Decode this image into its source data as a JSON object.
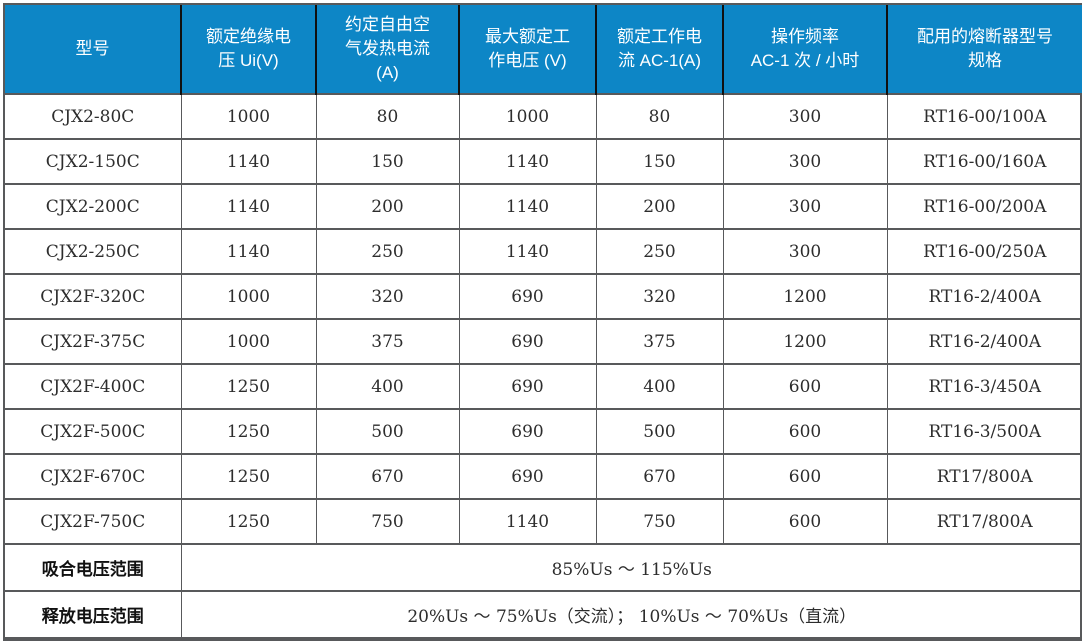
{
  "colors": {
    "header_bg": "#0d86c6",
    "header_text": "#ffffff",
    "header_divider": "#101010",
    "grid_border": "#58595b",
    "body_text": "#2d2d2d"
  },
  "table": {
    "columns": [
      "型号",
      "额定绝缘电\n压 Ui(V)",
      "约定自由空\n气发热电流\n(A)",
      "最大额定工\n作电压 (V)",
      "额定工作电\n流 AC-1(A)",
      "操作频率\nAC-1 次 / 小时",
      "配用的熔断器型号\n规格"
    ],
    "rows": [
      {
        "model": "CJX2-80C",
        "values": [
          "1000",
          "80",
          "1000",
          "80",
          "300",
          "RT16-00/100A"
        ]
      },
      {
        "model": "CJX2-150C",
        "values": [
          "1140",
          "150",
          "1140",
          "150",
          "300",
          "RT16-00/160A"
        ]
      },
      {
        "model": "CJX2-200C",
        "values": [
          "1140",
          "200",
          "1140",
          "200",
          "300",
          "RT16-00/200A"
        ]
      },
      {
        "model": "CJX2-250C",
        "values": [
          "1140",
          "250",
          "1140",
          "250",
          "300",
          "RT16-00/250A"
        ]
      },
      {
        "model": "CJX2F-320C",
        "values": [
          "1000",
          "320",
          "690",
          "320",
          "1200",
          "RT16-2/400A"
        ]
      },
      {
        "model": "CJX2F-375C",
        "values": [
          "1000",
          "375",
          "690",
          "375",
          "1200",
          "RT16-2/400A"
        ]
      },
      {
        "model": "CJX2F-400C",
        "values": [
          "1250",
          "400",
          "690",
          "400",
          "600",
          "RT16-3/450A"
        ]
      },
      {
        "model": "CJX2F-500C",
        "values": [
          "1250",
          "500",
          "690",
          "500",
          "600",
          "RT16-3/500A"
        ]
      },
      {
        "model": "CJX2F-670C",
        "values": [
          "1250",
          "670",
          "690",
          "670",
          "600",
          "RT17/800A"
        ]
      },
      {
        "model": "CJX2F-750C",
        "values": [
          "1250",
          "750",
          "1140",
          "750",
          "600",
          "RT17/800A"
        ]
      }
    ],
    "footer_rows": [
      {
        "label": "吸合电压范围",
        "value": "85%Us ～ 115%Us"
      },
      {
        "label": "释放电压范围",
        "value": "20%Us ～ 75%Us（交流）； 10%Us ～ 70%Us（直流）"
      }
    ]
  }
}
